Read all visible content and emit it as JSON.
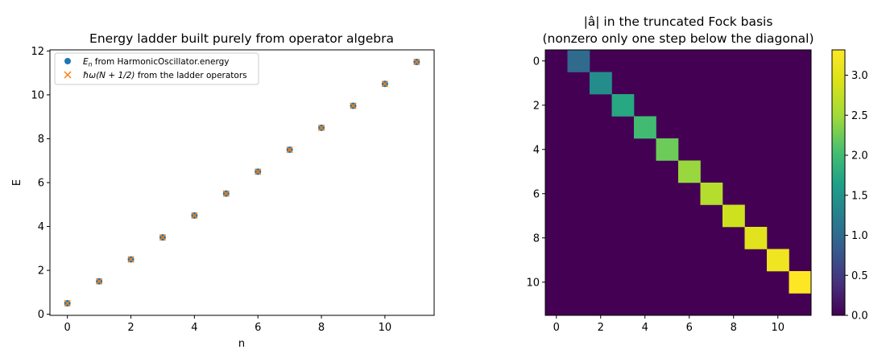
{
  "chart_data": [
    {
      "type": "scatter",
      "title": "Energy ladder built purely from operator algebra",
      "xlabel": "n",
      "ylabel": "E",
      "xlim": [
        -0.55,
        11.55
      ],
      "ylim": [
        -0.05,
        12.05
      ],
      "xticks": [
        0,
        2,
        4,
        6,
        8,
        10
      ],
      "yticks": [
        0,
        2,
        4,
        6,
        8,
        10,
        12
      ],
      "legend_position": "top-left",
      "series": [
        {
          "name_prefix": "E",
          "name_sub": "n",
          "name_suffix": " from HarmonicOscillator.energy",
          "marker": "circle",
          "color": "#1f77b4",
          "x": [
            0,
            1,
            2,
            3,
            4,
            5,
            6,
            7,
            8,
            9,
            10,
            11
          ],
          "y": [
            0.5,
            1.5,
            2.5,
            3.5,
            4.5,
            5.5,
            6.5,
            7.5,
            8.5,
            9.5,
            10.5,
            11.5
          ]
        },
        {
          "name_math": "ħω(N + 1/2)",
          "name_suffix": " from the ladder operators",
          "marker": "x",
          "color": "#ff7f0e",
          "x": [
            0,
            1,
            2,
            3,
            4,
            5,
            6,
            7,
            8,
            9,
            10,
            11
          ],
          "y": [
            0.5,
            1.5,
            2.5,
            3.5,
            4.5,
            5.5,
            6.5,
            7.5,
            8.5,
            9.5,
            10.5,
            11.5
          ]
        }
      ]
    },
    {
      "type": "heatmap",
      "title_line1": "|â| in the truncated Fock basis",
      "title_line2": "(nonzero only one step below the diagonal)",
      "size": 12,
      "xticks": [
        0,
        2,
        4,
        6,
        8,
        10
      ],
      "yticks": [
        0,
        2,
        4,
        6,
        8,
        10
      ],
      "colormap": "viridis",
      "vmin": 0,
      "vmax": 3.3166,
      "colorbar_ticks": [
        0.0,
        0.5,
        1.0,
        1.5,
        2.0,
        2.5,
        3.0
      ],
      "cells": [
        {
          "row": 0,
          "col": 1,
          "value": 1.0
        },
        {
          "row": 1,
          "col": 2,
          "value": 1.4142
        },
        {
          "row": 2,
          "col": 3,
          "value": 1.7321
        },
        {
          "row": 3,
          "col": 4,
          "value": 2.0
        },
        {
          "row": 4,
          "col": 5,
          "value": 2.2361
        },
        {
          "row": 5,
          "col": 6,
          "value": 2.4495
        },
        {
          "row": 6,
          "col": 7,
          "value": 2.6458
        },
        {
          "row": 7,
          "col": 8,
          "value": 2.8284
        },
        {
          "row": 8,
          "col": 9,
          "value": 3.0
        },
        {
          "row": 9,
          "col": 10,
          "value": 3.1623
        },
        {
          "row": 10,
          "col": 11,
          "value": 3.3166
        }
      ]
    }
  ]
}
